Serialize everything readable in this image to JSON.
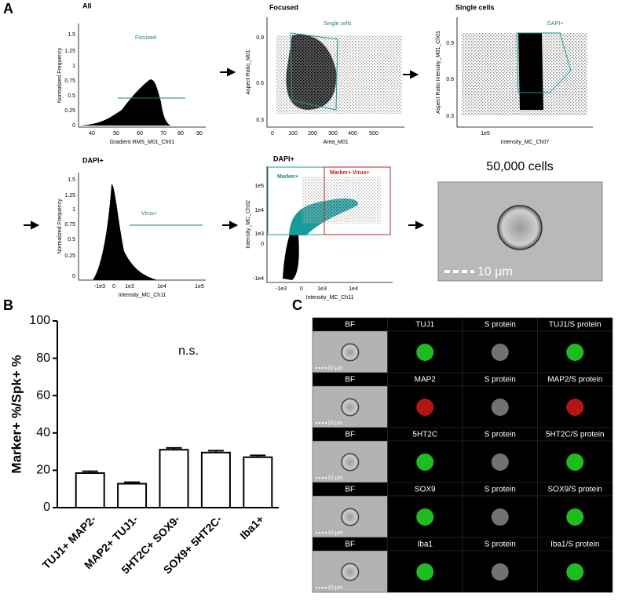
{
  "panel_a": {
    "label": "A",
    "cells_count": "50,000 cells",
    "scale_bar": "10 μm",
    "plots": [
      {
        "title": "All",
        "xlabel": "Gradient RMS_M01_Ch01",
        "ylabel": "Normalized Frequency",
        "xticks": [
          "40",
          "50",
          "60",
          "70",
          "80",
          "90"
        ],
        "yticks": [
          "1.5",
          "1.25",
          "1",
          "0.75",
          "0.5",
          "0.25",
          "0"
        ],
        "gates": [
          "Focused"
        ]
      },
      {
        "title": "Focused",
        "xlabel": "Area_M01",
        "ylabel": "Aspect Ratio_M01",
        "xticks": [
          "0",
          "100",
          "200",
          "300",
          "400",
          "500"
        ],
        "yticks": [
          "0.9",
          "0.6",
          "0.3"
        ],
        "gates": [
          "Single cells"
        ]
      },
      {
        "title": "Single cells",
        "xlabel": "Intensity_MC_Ch07",
        "ylabel": "Aspect Ratio Intensity_M01_Ch01",
        "xticks": [
          "1e5"
        ],
        "yticks": [
          "0.9",
          "0.6",
          "0.3"
        ],
        "gates": [
          "DAPI+"
        ]
      },
      {
        "title": "DAPI+",
        "xlabel": "Intensity_MC_Ch11",
        "ylabel": "Normalized Frequency",
        "xticks": [
          "-1e3",
          "0",
          "1e3",
          "1e4",
          "1e5"
        ],
        "yticks": [
          "1.5",
          "1.25",
          "1",
          "0.75",
          "0.5",
          "0.25",
          "0"
        ],
        "gates": [
          "Virus+"
        ]
      },
      {
        "title": "DAPI+",
        "xlabel": "Intensity_MC_Ch11",
        "ylabel": "Intensity_MC_Ch02",
        "xticks": [
          "-1e3",
          "0",
          "1e3",
          "1e4"
        ],
        "yticks": [
          "1e5",
          "1e4",
          "1e3",
          "0",
          "-1e4"
        ],
        "gates": [
          "Marker+",
          "Marker+ Virus+"
        ]
      }
    ]
  },
  "chart_data": {
    "type": "bar",
    "label": "B",
    "ylabel": "Marker+ %/Spk+ %",
    "annotation": "n.s.",
    "categories": [
      "TUJ1+ MAP2-",
      "MAP2+ TUJ1-",
      "5HT2C+ SOX9-",
      "SOX9+ 5HT2C-",
      "Iba1+"
    ],
    "values": [
      18.5,
      12.8,
      31,
      29.5,
      27
    ],
    "errors": [
      1,
      0.8,
      1,
      1,
      1
    ],
    "color": "#ffffff",
    "ylim": [
      0,
      100
    ],
    "yticks": [
      0,
      20,
      40,
      60,
      80,
      100
    ]
  },
  "panel_c": {
    "label": "C",
    "scale_bar": "10 μm",
    "rows": [
      {
        "labels": [
          "BF",
          "TUJ1",
          "S protein",
          "TUJ1/S protein"
        ],
        "color": "#22d022"
      },
      {
        "labels": [
          "BF",
          "MAP2",
          "S protein",
          "MAP2/S protein"
        ],
        "color": "#c81818"
      },
      {
        "labels": [
          "BF",
          "5HT2C",
          "S protein",
          "5HT2C/S protein"
        ],
        "color": "#22d022"
      },
      {
        "labels": [
          "BF",
          "SOX9",
          "S protein",
          "SOX9/S protein"
        ],
        "color": "#22d022"
      },
      {
        "labels": [
          "BF",
          "Iba1",
          "S protein",
          "Iba1/S protein"
        ],
        "color": "#22d022"
      }
    ]
  }
}
